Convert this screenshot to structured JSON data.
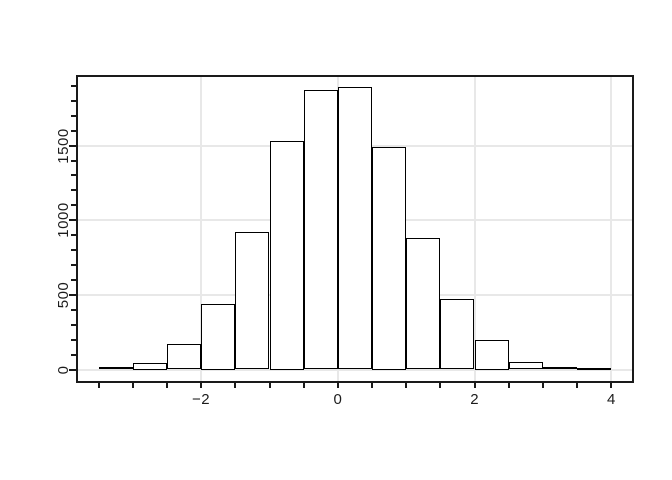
{
  "figure": {
    "background": "#ffffff",
    "title": ""
  },
  "chart_data": {
    "type": "bar",
    "subtype": "histogram",
    "title": "",
    "xlabel": "",
    "ylabel": "",
    "bin_width": 0.5,
    "breaks": [
      -3.5,
      -3,
      -2.5,
      -2,
      -1.5,
      -1,
      -0.5,
      0,
      0.5,
      1,
      1.5,
      2,
      2.5,
      3,
      3.5,
      4
    ],
    "counts": [
      15,
      45,
      170,
      440,
      920,
      1530,
      1870,
      1890,
      1490,
      880,
      470,
      200,
      50,
      15,
      5
    ],
    "x_axis": {
      "range": [
        -3.8,
        4.3
      ],
      "tick_values": [
        -3.5,
        -3,
        -2.5,
        -2,
        -1.5,
        -1,
        -0.5,
        0,
        0.5,
        1,
        1.5,
        2,
        2.5,
        3,
        3.5,
        4
      ],
      "labeled_ticks": [
        {
          "value": -2,
          "label": "−2"
        },
        {
          "value": 0,
          "label": "0"
        },
        {
          "value": 2,
          "label": "2"
        },
        {
          "value": 4,
          "label": "4"
        }
      ]
    },
    "y_axis": {
      "range": [
        -75.6,
        1965.6
      ],
      "minor_tick_values": [
        0,
        100,
        200,
        300,
        400,
        500,
        600,
        700,
        800,
        900,
        1000,
        1100,
        1200,
        1300,
        1400,
        1500,
        1600,
        1700,
        1800,
        1900
      ],
      "labeled_ticks": [
        {
          "value": 0,
          "label": "0"
        },
        {
          "value": 500,
          "label": "500"
        },
        {
          "value": 1000,
          "label": "1000"
        },
        {
          "value": 1500,
          "label": "1500"
        }
      ]
    },
    "grid": {
      "visible": true,
      "x_lines": [
        -2,
        0,
        2,
        4
      ],
      "y_lines": [
        0,
        500,
        1000,
        1500
      ]
    },
    "colors": {
      "background": "#ffffff",
      "bar_fill": "#ffffff",
      "bar_border": "#000000",
      "grid": "#e8e8e8",
      "axis": "#1a1a1a",
      "text": "#1c1c1c"
    },
    "legend": null
  }
}
